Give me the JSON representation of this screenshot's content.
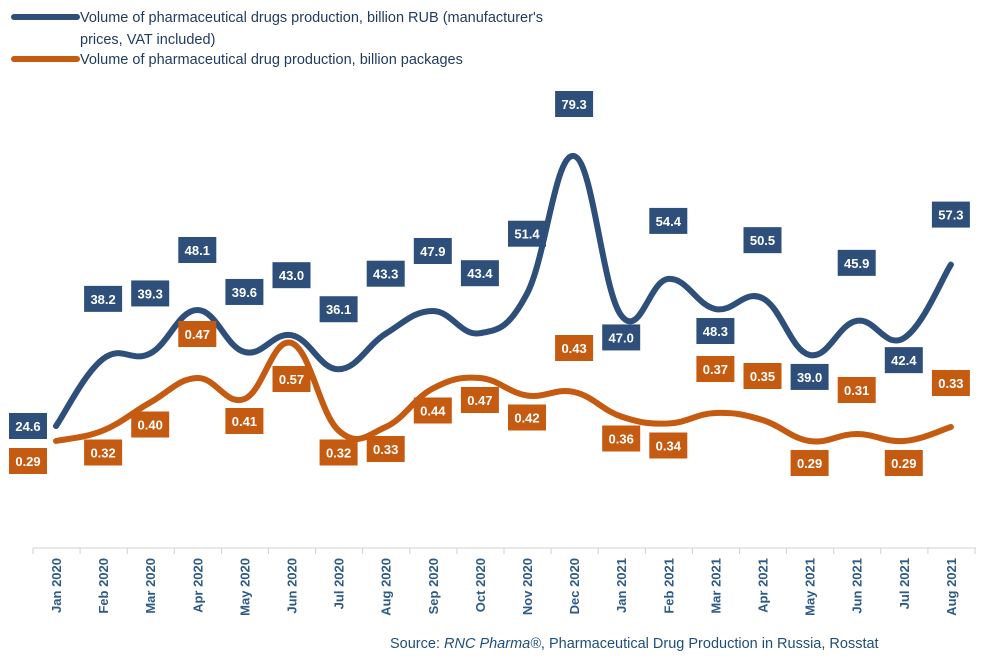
{
  "chart_data": {
    "type": "line",
    "categories": [
      "Jan 2020",
      "Feb 2020",
      "Mar 2020",
      "Apr 2020",
      "May 2020",
      "Jun 2020",
      "Jul 2020",
      "Aug 2020",
      "Sep 2020",
      "Oct 2020",
      "Nov 2020",
      "Dec 2020",
      "Jan 2021",
      "Feb 2021",
      "Mar 2021",
      "Apr 2021",
      "May 2021",
      "Jun 2021",
      "Jul 2021",
      "Aug 2021"
    ],
    "series": [
      {
        "name": "Volume of pharmaceutical drugs production, billion RUB (manufacturer's prices, VAT included)",
        "name_line1": "Volume of pharmaceutical drugs production, billion RUB (manufacturer's",
        "name_line2": "prices, VAT included)",
        "color": "#2e4f7a",
        "values": [
          24.6,
          38.2,
          39.3,
          48.1,
          39.6,
          43.0,
          36.1,
          43.3,
          47.9,
          43.4,
          51.4,
          79.3,
          47.0,
          54.4,
          48.3,
          50.5,
          39.0,
          45.9,
          42.4,
          57.3
        ],
        "labels": [
          "24.6",
          "38.2",
          "39.3",
          "48.1",
          "39.6",
          "43.0",
          "36.1",
          "43.3",
          "47.9",
          "43.4",
          "51.4",
          "79.3",
          "47.0",
          "54.4",
          "48.3",
          "50.5",
          "39.0",
          "45.9",
          "42.4",
          "57.3"
        ]
      },
      {
        "name": "Volume of pharmaceutical drug production, billion packages",
        "color": "#c55a11",
        "values": [
          0.29,
          0.32,
          0.4,
          0.47,
          0.41,
          0.57,
          0.32,
          0.33,
          0.44,
          0.47,
          0.42,
          0.43,
          0.36,
          0.34,
          0.37,
          0.35,
          0.29,
          0.31,
          0.29,
          0.33
        ],
        "labels": [
          "0.29",
          "0.32",
          "0.40",
          "0.47",
          "0.41",
          "0.57",
          "0.32",
          "0.33",
          "0.44",
          "0.47",
          "0.42",
          "0.43",
          "0.36",
          "0.34",
          "0.37",
          "0.35",
          "0.29",
          "0.31",
          "0.29",
          "0.33"
        ]
      }
    ],
    "xlabel": "",
    "ylabel": "",
    "grid": false,
    "legend": "top-left"
  },
  "source": {
    "prefix": "Source: ",
    "brand": "RNC Pharma®",
    "suffix": ", Pharmaceutical Drug Production in Russia, Rosstat"
  }
}
